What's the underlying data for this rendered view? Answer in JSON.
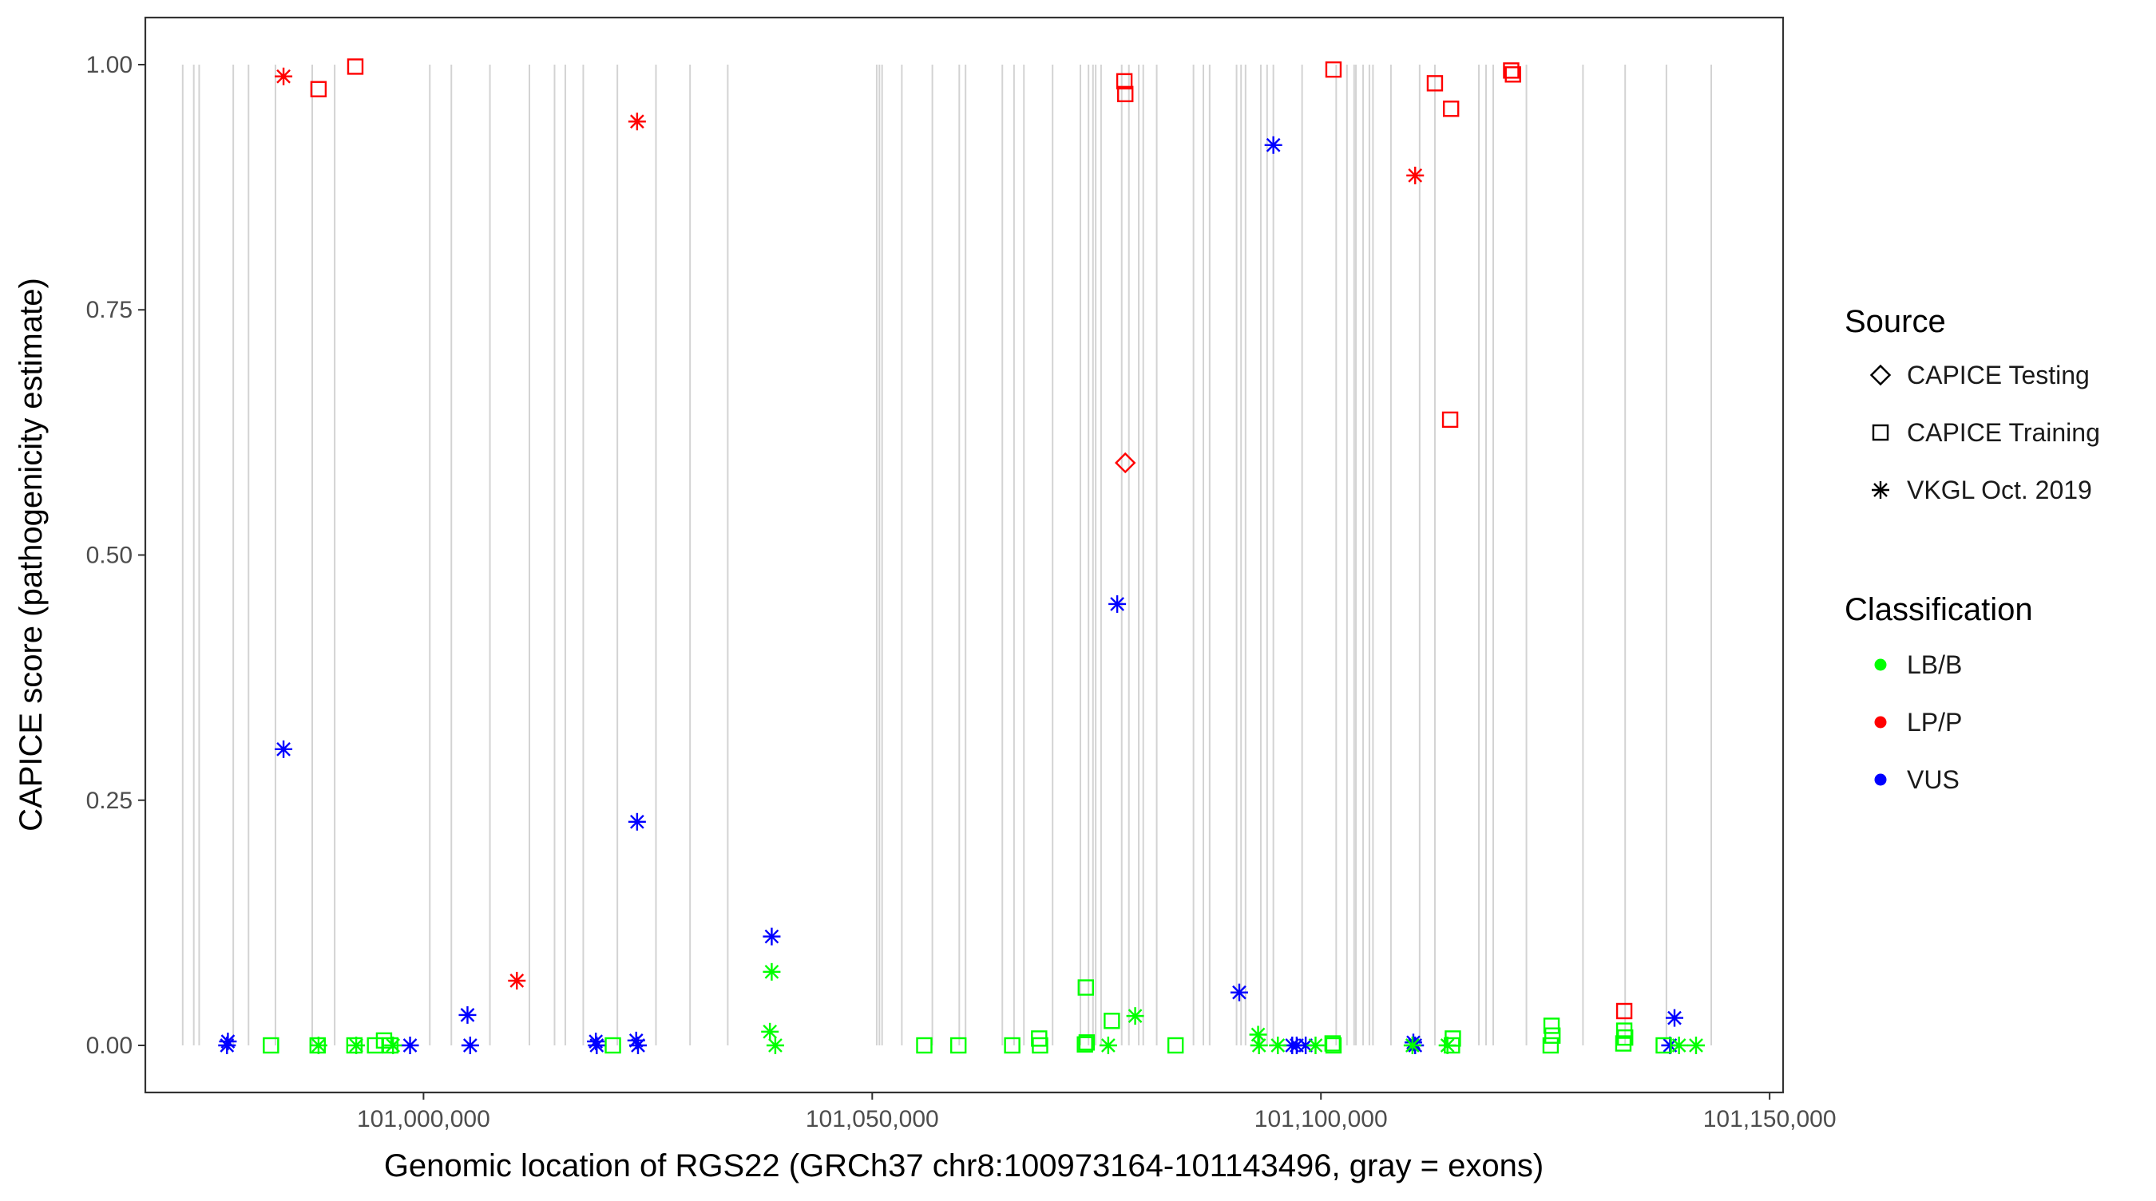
{
  "chart_data": {
    "type": "scatter",
    "xlabel": "Genomic location of RGS22 (GRCh37 chr8:100973164-101143496, gray = exons)",
    "ylabel": "CAPICE score (pathogenicity estimate)",
    "xlim": [
      100969000,
      101151500
    ],
    "ylim": [
      -0.048,
      1.048
    ],
    "x_ticks": [
      101000000,
      101050000,
      101100000,
      101150000
    ],
    "x_tick_labels": [
      "101,000,000",
      "101,050,000",
      "101,100,000",
      "101,150,000"
    ],
    "y_ticks": [
      0,
      0.25,
      0.5,
      0.75,
      1.0
    ],
    "y_tick_labels": [
      "0.00",
      "0.25",
      "0.50",
      "0.75",
      "1.00"
    ],
    "grid": false,
    "exon_lines": [
      100973164,
      100974400,
      100975000,
      100978800,
      100980500,
      100983500,
      100987600,
      100990100,
      101000700,
      101003100,
      101007400,
      101011800,
      101014600,
      101015800,
      101017800,
      101021600,
      101025900,
      101029700,
      101033900,
      101050500,
      101050800,
      101051100,
      101053300,
      101056700,
      101059700,
      101060400,
      101064500,
      101065800,
      101066900,
      101070100,
      101073200,
      101074100,
      101074600,
      101074900,
      101075500,
      101077800,
      101078600,
      101079700,
      101080200,
      101081700,
      101085800,
      101086900,
      101087600,
      101090600,
      101091100,
      101091600,
      101093300,
      101094000,
      101094700,
      101097900,
      101101700,
      101102900,
      101103700,
      101103900,
      101104700,
      101105400,
      101105800,
      101107800,
      101111000,
      101112700,
      101117600,
      101118400,
      101119200,
      101122900,
      101129200,
      101133900,
      101138500,
      101143496
    ],
    "legend": {
      "placement": "right",
      "source_title": "Source",
      "source_entries": [
        {
          "label": "CAPICE Testing",
          "shape": "diamond"
        },
        {
          "label": "CAPICE Training",
          "shape": "square"
        },
        {
          "label": "VKGL Oct. 2019",
          "shape": "asterisk"
        }
      ],
      "class_title": "Classification",
      "class_entries": [
        {
          "label": "LB/B",
          "color": "#00ff00"
        },
        {
          "label": "LP/P",
          "color": "#ff0000"
        },
        {
          "label": "VUS",
          "color": "#0000ff"
        }
      ]
    },
    "series": [
      {
        "source": "CAPICE Testing",
        "classification": "LP/P",
        "points": [
          [
            101078200,
            0.594
          ]
        ]
      },
      {
        "source": "CAPICE Training",
        "classification": "LP/P",
        "points": [
          [
            100988300,
            0.975
          ],
          [
            100992400,
            0.998
          ],
          [
            101078100,
            0.983
          ],
          [
            101078200,
            0.97
          ],
          [
            101101400,
            0.995
          ],
          [
            101112700,
            0.981
          ],
          [
            101114500,
            0.955
          ],
          [
            101114400,
            0.638
          ],
          [
            101121200,
            0.994
          ],
          [
            101121400,
            0.99
          ],
          [
            101133800,
            0.035
          ]
        ]
      },
      {
        "source": "VKGL Oct. 2019",
        "classification": "LP/P",
        "points": [
          [
            100984400,
            0.988
          ],
          [
            101023800,
            0.942
          ],
          [
            101010400,
            0.066
          ],
          [
            101110500,
            0.887
          ]
        ]
      },
      {
        "source": "VKGL Oct. 2019",
        "classification": "VUS",
        "points": [
          [
            100984400,
            0.302
          ],
          [
            101023800,
            0.228
          ],
          [
            101038800,
            0.111
          ],
          [
            101077300,
            0.45
          ],
          [
            101094700,
            0.918
          ],
          [
            101090900,
            0.054
          ],
          [
            101004900,
            0.031
          ],
          [
            101139400,
            0.028
          ],
          [
            100978200,
            0.004
          ],
          [
            100978100,
            0.0
          ],
          [
            100998500,
            0.0
          ],
          [
            101005200,
            0.0
          ],
          [
            101019200,
            0.004
          ],
          [
            101019300,
            0.0
          ],
          [
            101023700,
            0.005
          ],
          [
            101023900,
            0.0
          ],
          [
            101096800,
            0.0
          ],
          [
            101097300,
            0.0
          ],
          [
            101098300,
            0.0
          ],
          [
            101110300,
            0.003
          ],
          [
            101110500,
            0.0
          ],
          [
            101138900,
            0.0
          ]
        ]
      },
      {
        "source": "VKGL Oct. 2019",
        "classification": "LB/B",
        "points": [
          [
            101038800,
            0.075
          ],
          [
            101079300,
            0.03
          ],
          [
            101038600,
            0.014
          ],
          [
            101039200,
            0.0
          ],
          [
            100988300,
            0.0
          ],
          [
            100992500,
            0.0
          ],
          [
            100996600,
            0.0
          ],
          [
            101076300,
            0.0
          ],
          [
            101093000,
            0.011
          ],
          [
            101093100,
            0.0
          ],
          [
            101095200,
            0.0
          ],
          [
            101099400,
            0.0
          ],
          [
            101110200,
            0.0
          ],
          [
            101114100,
            0.0
          ],
          [
            101139900,
            0.0
          ],
          [
            101141800,
            0.0
          ]
        ]
      },
      {
        "source": "CAPICE Training",
        "classification": "LB/B",
        "points": [
          [
            100983000,
            0.0
          ],
          [
            100988200,
            0.0
          ],
          [
            100992300,
            0.0
          ],
          [
            100994600,
            0.0
          ],
          [
            100995600,
            0.005
          ],
          [
            100996300,
            0.0
          ],
          [
            101021100,
            0.0
          ],
          [
            101055800,
            0.0
          ],
          [
            101059600,
            0.0
          ],
          [
            101065600,
            0.0
          ],
          [
            101068600,
            0.007
          ],
          [
            101068700,
            0.0
          ],
          [
            101073800,
            0.059
          ],
          [
            101073900,
            0.003
          ],
          [
            101073700,
            0.001
          ],
          [
            101076700,
            0.025
          ],
          [
            101083800,
            0.0
          ],
          [
            101101300,
            0.002
          ],
          [
            101101400,
            0.0
          ],
          [
            101114700,
            0.007
          ],
          [
            101114600,
            0.0
          ],
          [
            101125700,
            0.02
          ],
          [
            101125800,
            0.01
          ],
          [
            101125600,
            0.0
          ],
          [
            101133800,
            0.015
          ],
          [
            101133900,
            0.008
          ],
          [
            101133700,
            0.002
          ],
          [
            101138200,
            0.0
          ]
        ]
      }
    ]
  }
}
